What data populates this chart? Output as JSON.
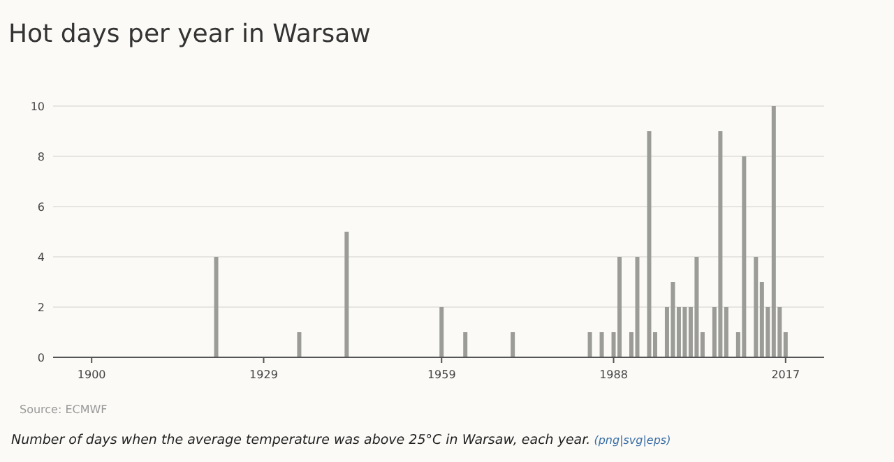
{
  "chart_data": {
    "type": "bar",
    "title": "Hot days per year in Warsaw",
    "x": [
      1921,
      1935,
      1943,
      1959,
      1963,
      1971,
      1984,
      1986,
      1988,
      1989,
      1991,
      1992,
      1994,
      1995,
      1997,
      1998,
      1999,
      2000,
      2001,
      2002,
      2003,
      2005,
      2006,
      2007,
      2009,
      2010,
      2012,
      2013,
      2014,
      2015,
      2016,
      2017
    ],
    "values": [
      4,
      1,
      5,
      2,
      1,
      1,
      1,
      1,
      1,
      4,
      1,
      4,
      9,
      1,
      2,
      3,
      2,
      2,
      2,
      4,
      1,
      2,
      9,
      2,
      1,
      8,
      4,
      3,
      2,
      10,
      2,
      1
    ],
    "color": "#9b9b97",
    "xlim": [
      1893.5,
      2023.5
    ],
    "xticks": [
      1900,
      1929,
      1959,
      1988,
      2017
    ],
    "ylim": [
      0,
      10
    ],
    "yticks": [
      0,
      2,
      4,
      6,
      8,
      10
    ],
    "grid": "y",
    "annotations": [
      "Source: ECMWF",
      "Number of days when the average temperature was above 25°C in Warsaw, each year.",
      "(png|svg|eps)"
    ]
  }
}
